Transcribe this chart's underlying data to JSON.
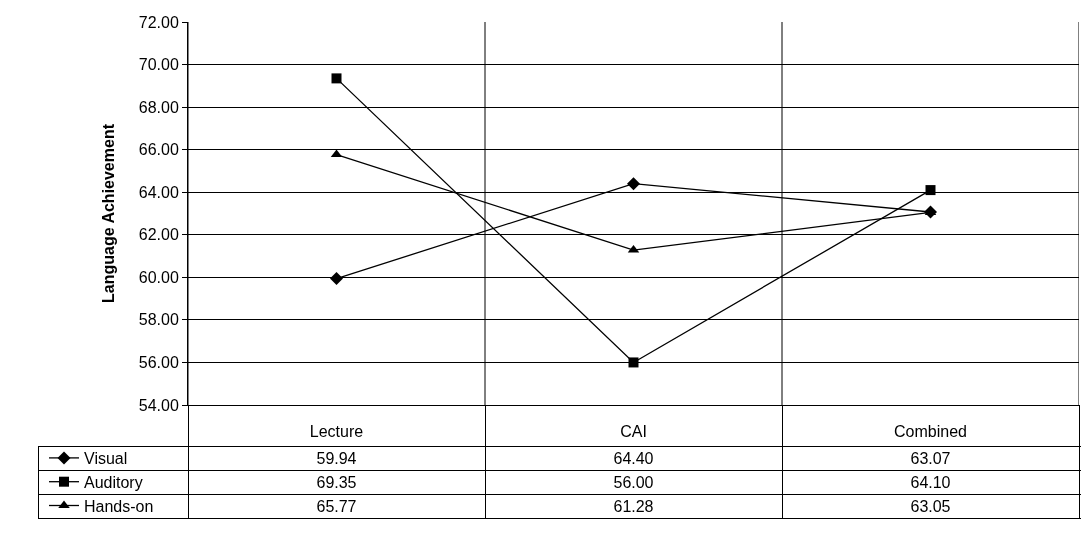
{
  "chart_data": {
    "type": "line",
    "ylabel": "Language Achievement",
    "categories": [
      "Lecture",
      "CAI",
      "Combined"
    ],
    "series": [
      {
        "name": "Visual",
        "color": "#000000",
        "marker": "diamond",
        "values": [
          59.94,
          64.4,
          63.07
        ],
        "value_labels": [
          "59.94",
          "64.40",
          "63.07"
        ]
      },
      {
        "name": "Auditory",
        "color": "#000000",
        "marker": "square",
        "values": [
          69.35,
          56.0,
          64.1
        ],
        "value_labels": [
          "69.35",
          "56.00",
          "64.10"
        ]
      },
      {
        "name": "Hands-on",
        "color": "#000000",
        "marker": "triangle",
        "values": [
          65.77,
          61.28,
          63.05
        ],
        "value_labels": [
          "65.77",
          "61.28",
          "63.05"
        ]
      }
    ],
    "ylim": [
      54,
      72
    ],
    "yticks": [
      {
        "value": 54,
        "label": "54.00"
      },
      {
        "value": 56,
        "label": "56.00"
      },
      {
        "value": 58,
        "label": "58.00"
      },
      {
        "value": 60,
        "label": "60.00"
      },
      {
        "value": 62,
        "label": "62.00"
      },
      {
        "value": 64,
        "label": "64.00"
      },
      {
        "value": 66,
        "label": "66.00"
      },
      {
        "value": 68,
        "label": "68.00"
      },
      {
        "value": 70,
        "label": "70.00"
      },
      {
        "value": 72,
        "label": "72.00"
      }
    ],
    "grid": true,
    "legend": "bottom left",
    "line_style": "solid"
  }
}
